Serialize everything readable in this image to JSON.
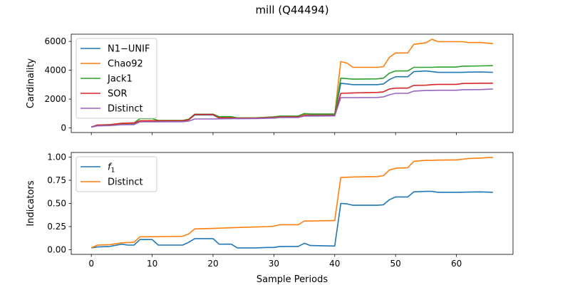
{
  "figure": {
    "title": "mill (Q44494)"
  },
  "chart_data": [
    {
      "type": "line",
      "title": "",
      "xlabel": "",
      "ylabel": "Cardinality",
      "xlim": [
        -3.3,
        69.3
      ],
      "ylim": [
        -320,
        6500
      ],
      "xticks": [
        0,
        10,
        20,
        30,
        40,
        50,
        60
      ],
      "yticks": [
        0,
        2000,
        4000,
        6000
      ],
      "show_xtick_labels": false,
      "grid": false,
      "legend": {
        "position": "upper-left"
      },
      "series": [
        {
          "name": "N1−UNIF",
          "color": "#1f77b4",
          "points": [
            [
              0,
              50
            ],
            [
              1,
              150
            ],
            [
              3,
              180
            ],
            [
              5,
              250
            ],
            [
              7,
              280
            ],
            [
              8,
              480
            ],
            [
              10,
              480
            ],
            [
              11,
              470
            ],
            [
              15,
              470
            ],
            [
              16,
              560
            ],
            [
              17,
              900
            ],
            [
              20,
              900
            ],
            [
              21,
              690
            ],
            [
              23,
              690
            ],
            [
              24,
              650
            ],
            [
              27,
              660
            ],
            [
              30,
              700
            ],
            [
              31,
              760
            ],
            [
              34,
              760
            ],
            [
              35,
              880
            ],
            [
              36,
              880
            ],
            [
              40,
              880
            ],
            [
              41,
              3100
            ],
            [
              43,
              3000
            ],
            [
              47,
              3000
            ],
            [
              48,
              3050
            ],
            [
              49,
              3350
            ],
            [
              50,
              3550
            ],
            [
              52,
              3550
            ],
            [
              53,
              3900
            ],
            [
              55,
              3950
            ],
            [
              56,
              3900
            ],
            [
              57,
              3850
            ],
            [
              60,
              3850
            ],
            [
              61,
              3850
            ],
            [
              62,
              3870
            ],
            [
              64,
              3880
            ],
            [
              66,
              3850
            ]
          ]
        },
        {
          "name": "Chao92",
          "color": "#ff7f0e",
          "points": [
            [
              0,
              60
            ],
            [
              1,
              180
            ],
            [
              3,
              200
            ],
            [
              5,
              300
            ],
            [
              7,
              320
            ],
            [
              8,
              500
            ],
            [
              10,
              510
            ],
            [
              11,
              510
            ],
            [
              15,
              510
            ],
            [
              16,
              600
            ],
            [
              17,
              950
            ],
            [
              20,
              950
            ],
            [
              21,
              730
            ],
            [
              23,
              730
            ],
            [
              24,
              700
            ],
            [
              27,
              700
            ],
            [
              30,
              760
            ],
            [
              31,
              800
            ],
            [
              34,
              800
            ],
            [
              35,
              960
            ],
            [
              36,
              960
            ],
            [
              40,
              960
            ],
            [
              41,
              4600
            ],
            [
              42,
              4500
            ],
            [
              43,
              4200
            ],
            [
              46,
              4200
            ],
            [
              47,
              4200
            ],
            [
              48,
              4250
            ],
            [
              49,
              4900
            ],
            [
              50,
              5200
            ],
            [
              52,
              5200
            ],
            [
              53,
              5800
            ],
            [
              55,
              5900
            ],
            [
              56,
              6150
            ],
            [
              57,
              5980
            ],
            [
              60,
              5980
            ],
            [
              61,
              5980
            ],
            [
              62,
              5920
            ],
            [
              64,
              5920
            ],
            [
              66,
              5850
            ]
          ]
        },
        {
          "name": "Jack1",
          "color": "#2ca02c",
          "points": [
            [
              0,
              60
            ],
            [
              1,
              200
            ],
            [
              3,
              230
            ],
            [
              5,
              320
            ],
            [
              7,
              340
            ],
            [
              8,
              650
            ],
            [
              10,
              650
            ],
            [
              11,
              520
            ],
            [
              15,
              520
            ],
            [
              16,
              600
            ],
            [
              17,
              950
            ],
            [
              20,
              950
            ],
            [
              21,
              780
            ],
            [
              23,
              780
            ],
            [
              24,
              700
            ],
            [
              27,
              700
            ],
            [
              30,
              760
            ],
            [
              31,
              820
            ],
            [
              34,
              820
            ],
            [
              35,
              1000
            ],
            [
              36,
              960
            ],
            [
              40,
              960
            ],
            [
              41,
              3450
            ],
            [
              43,
              3380
            ],
            [
              47,
              3400
            ],
            [
              48,
              3450
            ],
            [
              49,
              3800
            ],
            [
              50,
              3950
            ],
            [
              52,
              3950
            ],
            [
              53,
              4200
            ],
            [
              56,
              4200
            ],
            [
              57,
              4220
            ],
            [
              60,
              4220
            ],
            [
              61,
              4280
            ],
            [
              64,
              4300
            ],
            [
              66,
              4320
            ]
          ]
        },
        {
          "name": "SOR",
          "color": "#d62728",
          "points": [
            [
              0,
              60
            ],
            [
              1,
              200
            ],
            [
              3,
              220
            ],
            [
              5,
              320
            ],
            [
              7,
              340
            ],
            [
              8,
              480
            ],
            [
              10,
              480
            ],
            [
              11,
              490
            ],
            [
              15,
              490
            ],
            [
              16,
              560
            ],
            [
              17,
              930
            ],
            [
              20,
              930
            ],
            [
              21,
              700
            ],
            [
              23,
              700
            ],
            [
              24,
              680
            ],
            [
              27,
              680
            ],
            [
              30,
              720
            ],
            [
              31,
              760
            ],
            [
              34,
              760
            ],
            [
              35,
              860
            ],
            [
              36,
              860
            ],
            [
              40,
              860
            ],
            [
              41,
              2400
            ],
            [
              43,
              2430
            ],
            [
              47,
              2460
            ],
            [
              48,
              2500
            ],
            [
              49,
              2700
            ],
            [
              50,
              2760
            ],
            [
              52,
              2760
            ],
            [
              53,
              2950
            ],
            [
              55,
              2960
            ],
            [
              56,
              3000
            ],
            [
              57,
              3020
            ],
            [
              60,
              3020
            ],
            [
              61,
              3080
            ],
            [
              64,
              3100
            ],
            [
              66,
              3100
            ]
          ]
        },
        {
          "name": "Distinct",
          "color": "#9467bd",
          "points": [
            [
              0,
              50
            ],
            [
              1,
              140
            ],
            [
              3,
              160
            ],
            [
              5,
              220
            ],
            [
              7,
              230
            ],
            [
              8,
              420
            ],
            [
              10,
              420
            ],
            [
              11,
              420
            ],
            [
              15,
              430
            ],
            [
              16,
              470
            ],
            [
              17,
              620
            ],
            [
              20,
              620
            ],
            [
              21,
              630
            ],
            [
              23,
              640
            ],
            [
              24,
              650
            ],
            [
              27,
              650
            ],
            [
              30,
              680
            ],
            [
              31,
              720
            ],
            [
              34,
              720
            ],
            [
              35,
              820
            ],
            [
              36,
              820
            ],
            [
              40,
              830
            ],
            [
              41,
              2100
            ],
            [
              43,
              2100
            ],
            [
              47,
              2110
            ],
            [
              48,
              2150
            ],
            [
              49,
              2300
            ],
            [
              50,
              2400
            ],
            [
              52,
              2400
            ],
            [
              53,
              2550
            ],
            [
              55,
              2600
            ],
            [
              56,
              2600
            ],
            [
              57,
              2610
            ],
            [
              60,
              2610
            ],
            [
              61,
              2650
            ],
            [
              64,
              2660
            ],
            [
              66,
              2700
            ]
          ]
        }
      ]
    },
    {
      "type": "line",
      "title": "",
      "xlabel": "Sample Periods",
      "ylabel": "Indicators",
      "xlim": [
        -3.3,
        69.3
      ],
      "ylim": [
        -0.05,
        1.05
      ],
      "xticks": [
        0,
        10,
        20,
        30,
        40,
        50,
        60
      ],
      "yticks": [
        0.0,
        0.25,
        0.5,
        0.75,
        1.0
      ],
      "xtick_labels": [
        "0",
        "10",
        "20",
        "30",
        "40",
        "50",
        "60"
      ],
      "ytick_labels": [
        "0.00",
        "0.25",
        "0.50",
        "0.75",
        "1.00"
      ],
      "grid": false,
      "legend": {
        "position": "upper-left"
      },
      "series": [
        {
          "name": "f",
          "name_subscript": "1",
          "color": "#1f77b4",
          "points": [
            [
              0,
              0.02
            ],
            [
              1,
              0.03
            ],
            [
              3,
              0.035
            ],
            [
              5,
              0.06
            ],
            [
              6,
              0.05
            ],
            [
              7,
              0.05
            ],
            [
              8,
              0.11
            ],
            [
              10,
              0.11
            ],
            [
              11,
              0.05
            ],
            [
              15,
              0.05
            ],
            [
              16,
              0.08
            ],
            [
              17,
              0.12
            ],
            [
              20,
              0.12
            ],
            [
              21,
              0.06
            ],
            [
              23,
              0.06
            ],
            [
              24,
              0.02
            ],
            [
              27,
              0.02
            ],
            [
              29,
              0.025
            ],
            [
              30,
              0.025
            ],
            [
              31,
              0.035
            ],
            [
              34,
              0.035
            ],
            [
              35,
              0.07
            ],
            [
              36,
              0.045
            ],
            [
              40,
              0.04
            ],
            [
              41,
              0.5
            ],
            [
              42,
              0.495
            ],
            [
              43,
              0.48
            ],
            [
              47,
              0.48
            ],
            [
              48,
              0.485
            ],
            [
              49,
              0.54
            ],
            [
              50,
              0.57
            ],
            [
              52,
              0.57
            ],
            [
              53,
              0.625
            ],
            [
              55,
              0.63
            ],
            [
              56,
              0.63
            ],
            [
              57,
              0.62
            ],
            [
              60,
              0.62
            ],
            [
              62,
              0.622
            ],
            [
              64,
              0.625
            ],
            [
              66,
              0.62
            ]
          ]
        },
        {
          "name": "Distinct",
          "color": "#ff7f0e",
          "points": [
            [
              0,
              0.02
            ],
            [
              1,
              0.05
            ],
            [
              3,
              0.055
            ],
            [
              5,
              0.075
            ],
            [
              7,
              0.08
            ],
            [
              8,
              0.14
            ],
            [
              10,
              0.14
            ],
            [
              15,
              0.145
            ],
            [
              16,
              0.17
            ],
            [
              17,
              0.225
            ],
            [
              20,
              0.23
            ],
            [
              22,
              0.235
            ],
            [
              24,
              0.24
            ],
            [
              27,
              0.245
            ],
            [
              29,
              0.25
            ],
            [
              30,
              0.255
            ],
            [
              31,
              0.27
            ],
            [
              34,
              0.27
            ],
            [
              35,
              0.31
            ],
            [
              36,
              0.31
            ],
            [
              40,
              0.315
            ],
            [
              41,
              0.78
            ],
            [
              43,
              0.785
            ],
            [
              47,
              0.79
            ],
            [
              48,
              0.8
            ],
            [
              49,
              0.86
            ],
            [
              50,
              0.88
            ],
            [
              52,
              0.885
            ],
            [
              53,
              0.955
            ],
            [
              55,
              0.965
            ],
            [
              56,
              0.965
            ],
            [
              57,
              0.968
            ],
            [
              60,
              0.97
            ],
            [
              62,
              0.985
            ],
            [
              64,
              0.99
            ],
            [
              66,
              0.998
            ]
          ]
        }
      ]
    }
  ]
}
